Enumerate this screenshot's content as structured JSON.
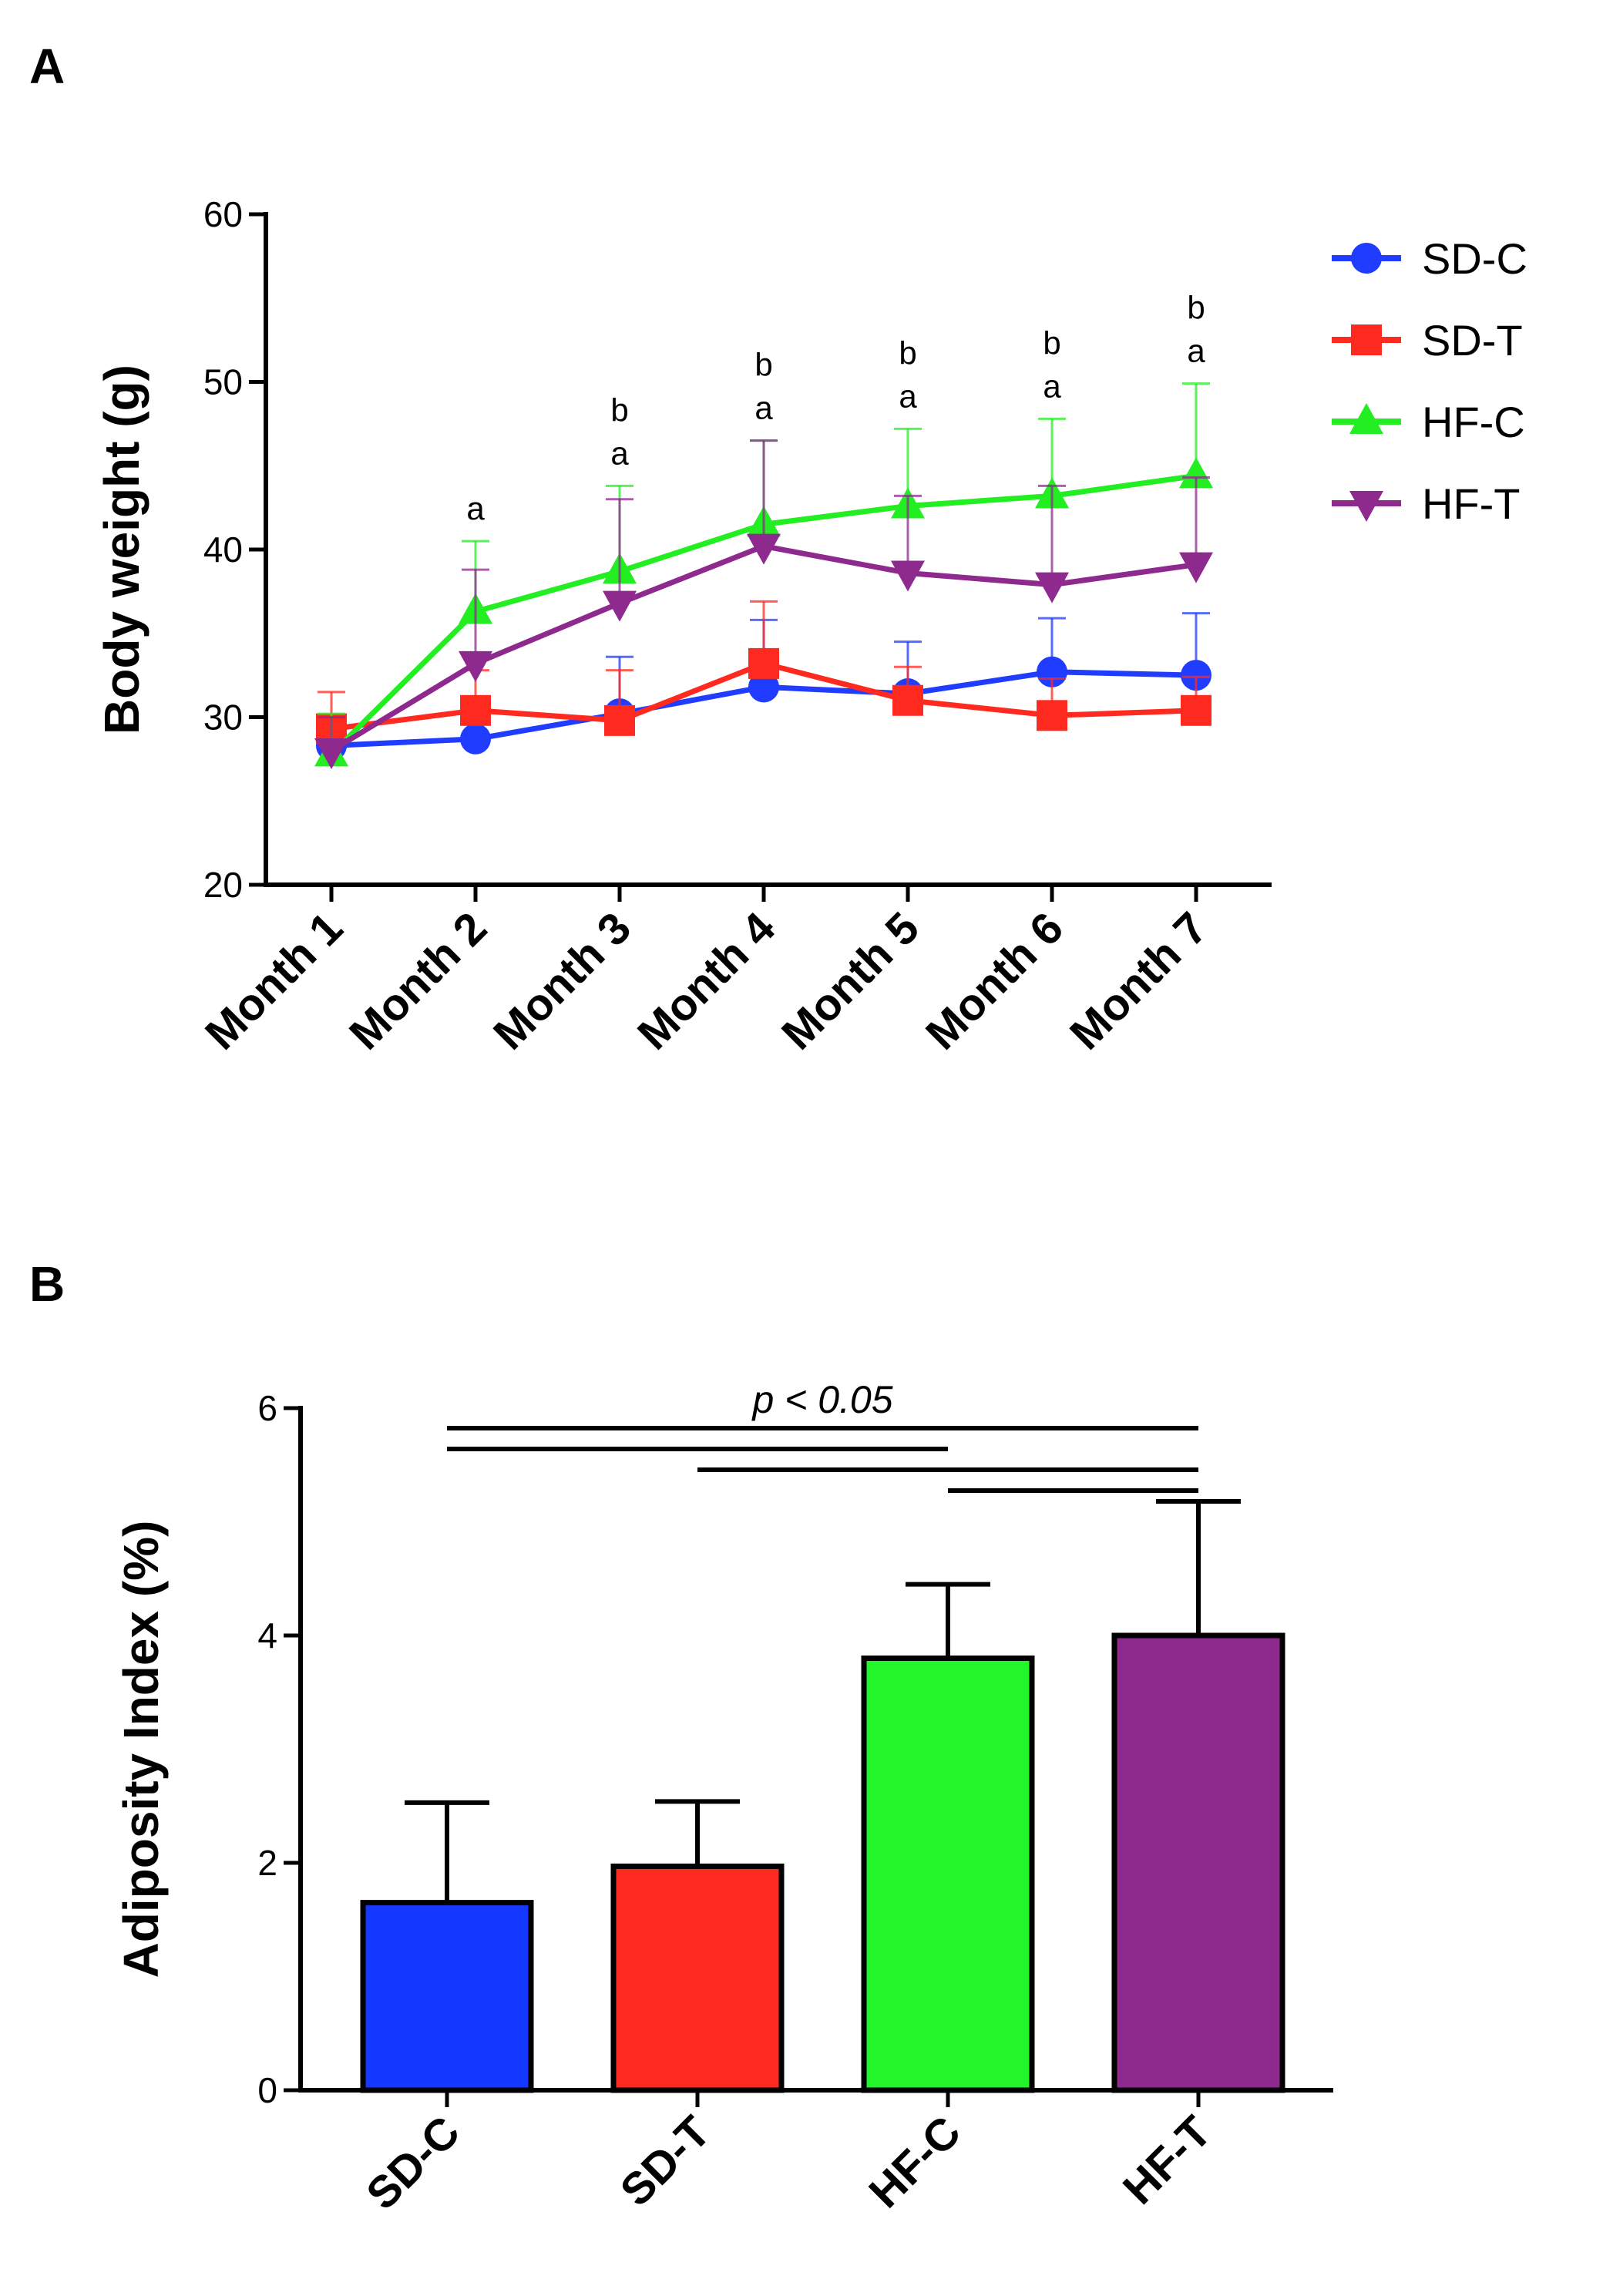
{
  "chart_data": [
    {
      "panel": "A",
      "type": "line",
      "title": "",
      "xlabel": "",
      "ylabel": "Body weight (g)",
      "ylim": [
        20,
        60
      ],
      "yticks": [
        20,
        30,
        40,
        50,
        60
      ],
      "categories": [
        "Month 1",
        "Month 2",
        "Month 3",
        "Month 4",
        "Month 5",
        "Month 6",
        "Month 7"
      ],
      "series": [
        {
          "name": "SD-C",
          "color": "#1f3cff",
          "marker": "circle",
          "values": [
            28.3,
            28.7,
            30.2,
            31.8,
            31.4,
            32.7,
            32.5
          ],
          "errors": [
            1.8,
            1.7,
            3.4,
            4.0,
            3.1,
            3.2,
            3.7
          ]
        },
        {
          "name": "SD-T",
          "color": "#ff2a1f",
          "marker": "square",
          "values": [
            29.3,
            30.4,
            29.8,
            33.2,
            31.0,
            30.1,
            30.4
          ],
          "errors": [
            2.2,
            2.4,
            3.0,
            3.7,
            2.0,
            2.2,
            2.0
          ]
        },
        {
          "name": "HF-C",
          "color": "#22ee22",
          "marker": "triangle-up",
          "values": [
            27.8,
            36.3,
            38.7,
            41.5,
            42.6,
            43.2,
            44.4
          ],
          "errors": [
            2.4,
            4.2,
            5.1,
            5.0,
            4.6,
            4.6,
            5.5
          ]
        },
        {
          "name": "HF-T",
          "color": "#8e2a8e",
          "marker": "triangle-down",
          "values": [
            28.0,
            33.2,
            36.8,
            40.2,
            38.6,
            37.9,
            39.1
          ],
          "errors": [
            2.0,
            5.6,
            6.2,
            6.3,
            4.6,
            5.9,
            5.2
          ]
        }
      ],
      "annotations": [
        {
          "category": "Month 2",
          "letters": [
            "a"
          ]
        },
        {
          "category": "Month 3",
          "letters": [
            "b",
            "a"
          ]
        },
        {
          "category": "Month 4",
          "letters": [
            "b",
            "a"
          ]
        },
        {
          "category": "Month 5",
          "letters": [
            "b",
            "a"
          ]
        },
        {
          "category": "Month 6",
          "letters": [
            "b",
            "a"
          ]
        },
        {
          "category": "Month 7",
          "letters": [
            "b",
            "a"
          ]
        }
      ],
      "legend": {
        "placement": "right"
      }
    },
    {
      "panel": "B",
      "type": "bar",
      "title": "",
      "xlabel": "",
      "ylabel": "Adiposity Index (%)",
      "ylim": [
        0,
        6
      ],
      "yticks": [
        0,
        2,
        4,
        6
      ],
      "categories": [
        "SD-C",
        "SD-T",
        "HF-C",
        "HF-T"
      ],
      "values": [
        1.65,
        1.97,
        3.8,
        4.0
      ],
      "errors": [
        0.88,
        0.57,
        0.65,
        1.18
      ],
      "colors": [
        "#1438ff",
        "#ff2a1f",
        "#22f52a",
        "#8e2a8e"
      ],
      "significance": {
        "label": "p < 0.05",
        "comparisons": [
          [
            "SD-C",
            "HF-T"
          ],
          [
            "SD-C",
            "HF-C"
          ],
          [
            "SD-T",
            "HF-T"
          ],
          [
            "HF-C",
            "HF-T"
          ]
        ]
      }
    }
  ]
}
